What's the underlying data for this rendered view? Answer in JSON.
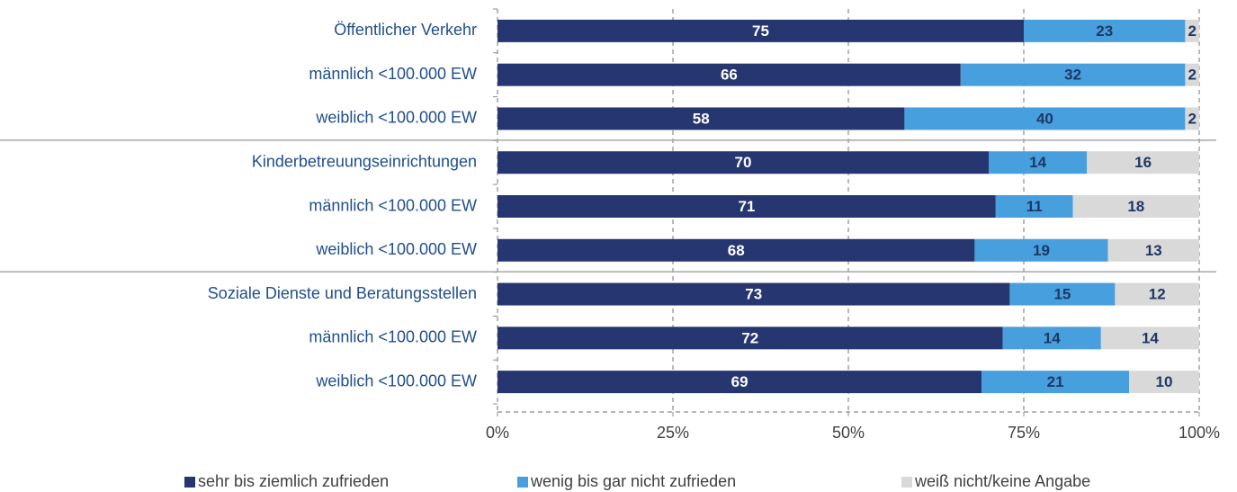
{
  "chart_data": {
    "type": "stacked_barh",
    "categories": [
      "Öffentlicher Verkehr",
      "männlich <100.000 EW",
      "weiblich <100.000 EW",
      "Kinderbetreuungseinrichtungen",
      "männlich <100.000 EW",
      "weiblich <100.000 EW",
      "Soziale Dienste und Beratungsstellen",
      "männlich <100.000 EW",
      "weiblich <100.000 EW"
    ],
    "series": [
      {
        "name": "sehr bis ziemlich zufrieden",
        "color": "#253670",
        "label_color": "#ffffff",
        "values": [
          75,
          66,
          58,
          70,
          71,
          68,
          73,
          72,
          69
        ]
      },
      {
        "name": "wenig bis gar nicht zufrieden",
        "color": "#479fdd",
        "label_color": "#1f3864",
        "values": [
          23,
          32,
          40,
          14,
          11,
          19,
          15,
          14,
          21
        ]
      },
      {
        "name": "weiß nicht/keine Angabe",
        "color": "#d9d9d9",
        "label_color": "#1f3864",
        "values": [
          2,
          2,
          2,
          16,
          18,
          13,
          12,
          14,
          10
        ]
      }
    ],
    "xlim": [
      0,
      100
    ],
    "xticks": [
      {
        "value": 0,
        "label": "0%"
      },
      {
        "value": 25,
        "label": "25%"
      },
      {
        "value": 50,
        "label": "50%"
      },
      {
        "value": 75,
        "label": "75%"
      },
      {
        "value": 100,
        "label": "100%"
      }
    ],
    "grid": true,
    "legend": "bottom"
  }
}
